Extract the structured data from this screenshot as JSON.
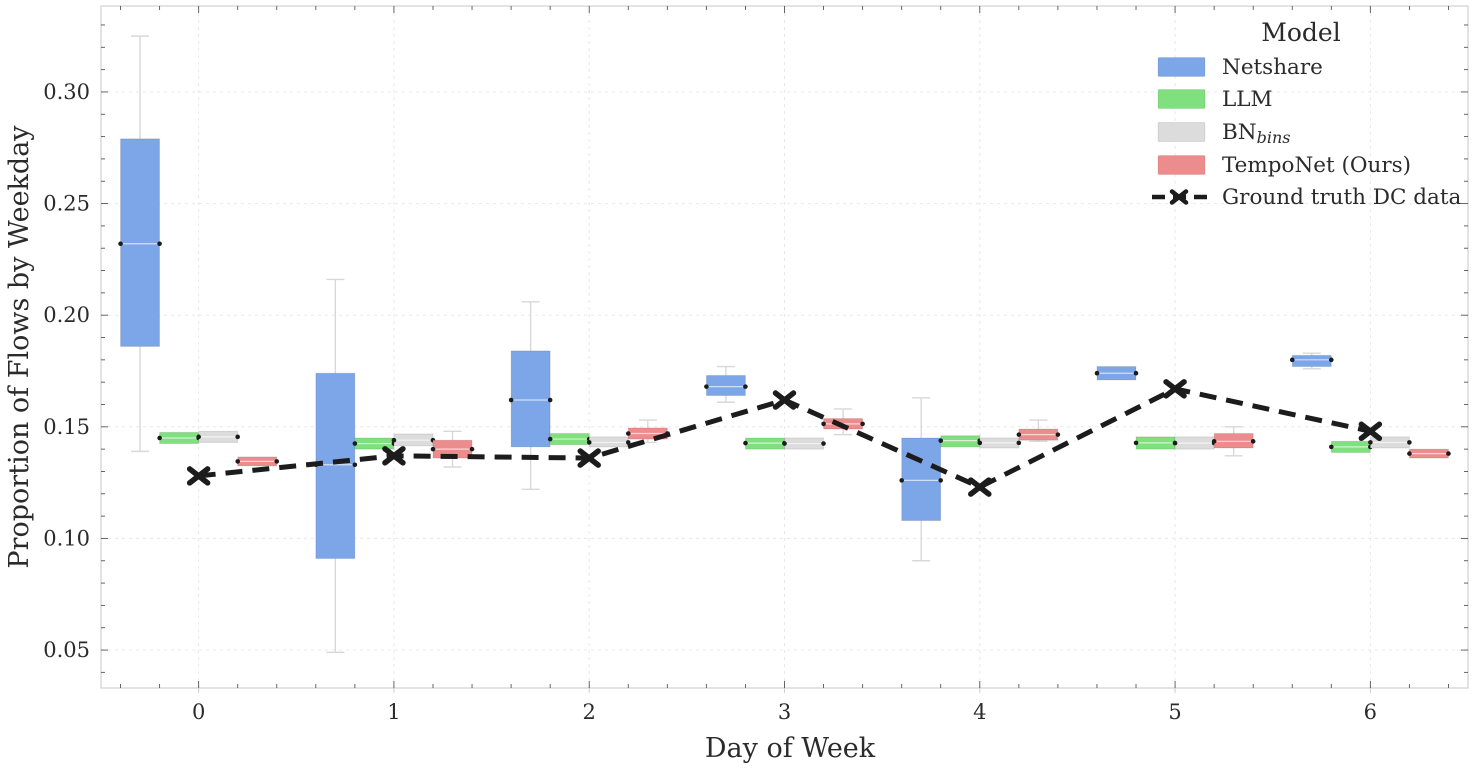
{
  "chart_data": {
    "type": "boxplot",
    "title": "",
    "xlabel": "Day of Week",
    "ylabel": "Proportion of Flows by Weekday",
    "categories": [
      "0",
      "1",
      "2",
      "3",
      "4",
      "5",
      "6"
    ],
    "xlim": [
      -0.5,
      6.5
    ],
    "ylim": [
      0.033,
      0.3385
    ],
    "yticks": [
      0.05,
      0.1,
      0.15,
      0.2,
      0.25,
      0.3
    ],
    "grid": true,
    "legend": {
      "title": "Model",
      "position": "upper right",
      "entries": [
        {
          "label": "Netshare",
          "swatch": "box",
          "color": "#7ca6e8"
        },
        {
          "label": "LLM",
          "swatch": "box",
          "color": "#7fe07d"
        },
        {
          "label": "BN",
          "label_sub": "bins",
          "swatch": "box",
          "color": "#dcdcdc"
        },
        {
          "label": "TempoNet (Ours)",
          "swatch": "box",
          "color": "#ec8c8c"
        },
        {
          "label": "Ground truth DC data",
          "swatch": "dashed-x-line",
          "color": "#1c1c1c"
        }
      ]
    },
    "series": [
      {
        "name": "Netshare",
        "color": "#7ca6e8",
        "offset": -0.3,
        "boxes": [
          {
            "day": 0,
            "lo": 0.139,
            "q1": 0.186,
            "med": 0.232,
            "q3": 0.279,
            "hi": 0.325
          },
          {
            "day": 1,
            "lo": 0.049,
            "q1": 0.091,
            "med": 0.133,
            "q3": 0.174,
            "hi": 0.216
          },
          {
            "day": 2,
            "lo": 0.122,
            "q1": 0.141,
            "med": 0.162,
            "q3": 0.184,
            "hi": 0.206
          },
          {
            "day": 3,
            "lo": 0.161,
            "q1": 0.164,
            "med": 0.168,
            "q3": 0.173,
            "hi": 0.177
          },
          {
            "day": 4,
            "lo": 0.09,
            "q1": 0.108,
            "med": 0.126,
            "q3": 0.145,
            "hi": 0.163
          },
          {
            "day": 5,
            "lo": 0.171,
            "q1": 0.171,
            "med": 0.174,
            "q3": 0.177,
            "hi": 0.177
          },
          {
            "day": 6,
            "lo": 0.176,
            "q1": 0.177,
            "med": 0.18,
            "q3": 0.182,
            "hi": 0.183
          }
        ]
      },
      {
        "name": "LLM",
        "color": "#7fe07d",
        "offset": -0.1,
        "boxes": [
          {
            "day": 0,
            "lo": 0.1425,
            "q1": 0.1425,
            "med": 0.145,
            "q3": 0.1475,
            "hi": 0.1475
          },
          {
            "day": 1,
            "lo": 0.14,
            "q1": 0.14,
            "med": 0.1425,
            "q3": 0.145,
            "hi": 0.145
          },
          {
            "day": 2,
            "lo": 0.142,
            "q1": 0.142,
            "med": 0.1445,
            "q3": 0.147,
            "hi": 0.147
          },
          {
            "day": 3,
            "lo": 0.14,
            "q1": 0.14,
            "med": 0.1427,
            "q3": 0.145,
            "hi": 0.145
          },
          {
            "day": 4,
            "lo": 0.141,
            "q1": 0.141,
            "med": 0.1438,
            "q3": 0.146,
            "hi": 0.146
          },
          {
            "day": 5,
            "lo": 0.14,
            "q1": 0.14,
            "med": 0.1428,
            "q3": 0.1455,
            "hi": 0.1455
          },
          {
            "day": 6,
            "lo": 0.1385,
            "q1": 0.1385,
            "med": 0.141,
            "q3": 0.1435,
            "hi": 0.1435
          }
        ]
      },
      {
        "name": "BN_bins",
        "color": "#dcdcdc",
        "offset": 0.1,
        "boxes": [
          {
            "day": 0,
            "lo": 0.143,
            "q1": 0.143,
            "med": 0.1455,
            "q3": 0.148,
            "hi": 0.148
          },
          {
            "day": 1,
            "lo": 0.1415,
            "q1": 0.1415,
            "med": 0.144,
            "q3": 0.1468,
            "hi": 0.1468
          },
          {
            "day": 2,
            "lo": 0.141,
            "q1": 0.141,
            "med": 0.143,
            "q3": 0.1455,
            "hi": 0.1455
          },
          {
            "day": 3,
            "lo": 0.14,
            "q1": 0.14,
            "med": 0.1425,
            "q3": 0.145,
            "hi": 0.145
          },
          {
            "day": 4,
            "lo": 0.1405,
            "q1": 0.1405,
            "med": 0.1428,
            "q3": 0.145,
            "hi": 0.145
          },
          {
            "day": 5,
            "lo": 0.14,
            "q1": 0.14,
            "med": 0.1427,
            "q3": 0.1455,
            "hi": 0.1455
          },
          {
            "day": 6,
            "lo": 0.1405,
            "q1": 0.1405,
            "med": 0.143,
            "q3": 0.1455,
            "hi": 0.1455
          }
        ]
      },
      {
        "name": "TempoNet (Ours)",
        "color": "#ec8c8c",
        "offset": 0.3,
        "boxes": [
          {
            "day": 0,
            "lo": 0.1325,
            "q1": 0.1325,
            "med": 0.1345,
            "q3": 0.1365,
            "hi": 0.1365
          },
          {
            "day": 1,
            "lo": 0.132,
            "q1": 0.136,
            "med": 0.14,
            "q3": 0.144,
            "hi": 0.148
          },
          {
            "day": 2,
            "lo": 0.143,
            "q1": 0.1445,
            "med": 0.147,
            "q3": 0.1495,
            "hi": 0.153
          },
          {
            "day": 3,
            "lo": 0.1465,
            "q1": 0.149,
            "med": 0.1513,
            "q3": 0.1537,
            "hi": 0.158
          },
          {
            "day": 4,
            "lo": 0.1435,
            "q1": 0.144,
            "med": 0.1465,
            "q3": 0.149,
            "hi": 0.153
          },
          {
            "day": 5,
            "lo": 0.137,
            "q1": 0.1405,
            "med": 0.1435,
            "q3": 0.147,
            "hi": 0.15
          },
          {
            "day": 6,
            "lo": 0.136,
            "q1": 0.136,
            "med": 0.138,
            "q3": 0.14,
            "hi": 0.14
          }
        ]
      }
    ],
    "ground_truth": {
      "name": "Ground truth DC data",
      "x": [
        0,
        1,
        2,
        3,
        4,
        5,
        6
      ],
      "y": [
        0.128,
        0.137,
        0.136,
        0.162,
        0.123,
        0.167,
        0.148
      ]
    },
    "colors": {
      "ground_truth": "#1c1c1c",
      "grid": "#e8e8e8",
      "spine": "#d0d0d0",
      "tick": "#555555",
      "tick_outward": "#cfcfcf",
      "tick_label": "#3a3a3a",
      "whisker": "#d8d8d8",
      "median_dot": "#1b1b1b",
      "background": "#ffffff"
    }
  }
}
